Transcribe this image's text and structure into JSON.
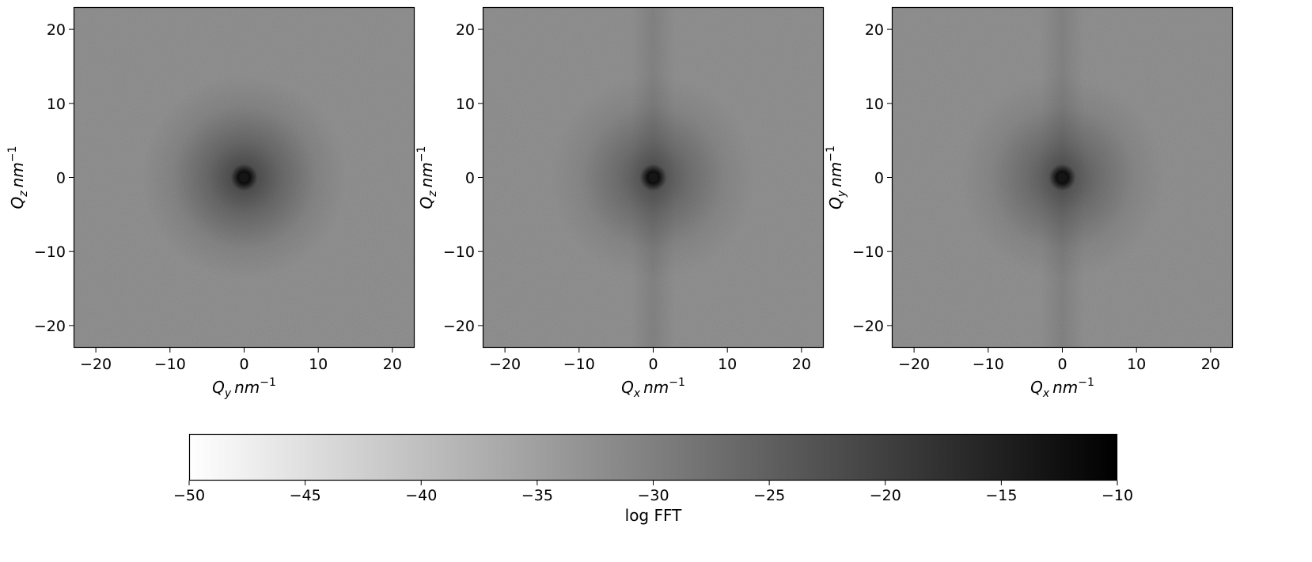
{
  "chart_data": {
    "panels": [
      {
        "type": "heatmap",
        "xlabel": {
          "base": "Q",
          "sub": "y",
          "unit": "nm",
          "sup": "−1"
        },
        "ylabel": {
          "base": "Q",
          "sub": "z",
          "unit": "nm",
          "sup": "−1"
        },
        "xlim": [
          -23,
          23
        ],
        "ylim": [
          -23,
          23
        ],
        "xticks": [
          -20,
          -10,
          0,
          10,
          20
        ],
        "yticks": [
          -20,
          -10,
          0,
          10,
          20
        ],
        "tick_labels": [
          "−20",
          "−10",
          "0",
          "10",
          "20"
        ],
        "halo_intensity": 0.55,
        "central_peak_intensity": 1.0,
        "vertical_streak": false
      },
      {
        "type": "heatmap",
        "xlabel": {
          "base": "Q",
          "sub": "x",
          "unit": "nm",
          "sup": "−1"
        },
        "ylabel": {
          "base": "Q",
          "sub": "z",
          "unit": "nm",
          "sup": "−1"
        },
        "xlim": [
          -23,
          23
        ],
        "ylim": [
          -23,
          23
        ],
        "xticks": [
          -20,
          -10,
          0,
          10,
          20
        ],
        "yticks": [
          -20,
          -10,
          0,
          10,
          20
        ],
        "tick_labels": [
          "−20",
          "−10",
          "0",
          "10",
          "20"
        ],
        "halo_intensity": 0.45,
        "central_peak_intensity": 1.0,
        "vertical_streak": true
      },
      {
        "type": "heatmap",
        "xlabel": {
          "base": "Q",
          "sub": "x",
          "unit": "nm",
          "sup": "−1"
        },
        "ylabel": {
          "base": "Q",
          "sub": "y",
          "unit": "nm",
          "sup": "−1"
        },
        "xlim": [
          -23,
          23
        ],
        "ylim": [
          -23,
          23
        ],
        "xticks": [
          -20,
          -10,
          0,
          10,
          20
        ],
        "yticks": [
          -20,
          -10,
          0,
          10,
          20
        ],
        "tick_labels": [
          "−20",
          "−10",
          "0",
          "10",
          "20"
        ],
        "halo_intensity": 0.45,
        "central_peak_intensity": 1.0,
        "vertical_streak": true
      }
    ],
    "colorbar": {
      "colormap": "gray_r",
      "label": "log FFT",
      "range": [
        -50,
        -10
      ],
      "ticks": [
        -50,
        -45,
        -40,
        -35,
        -30,
        -25,
        -20,
        -15,
        -10
      ],
      "tick_labels": [
        "−50",
        "−45",
        "−40",
        "−35",
        "−30",
        "−25",
        "−20",
        "−15",
        "−10"
      ],
      "background_value": -31
    },
    "grid": false
  }
}
